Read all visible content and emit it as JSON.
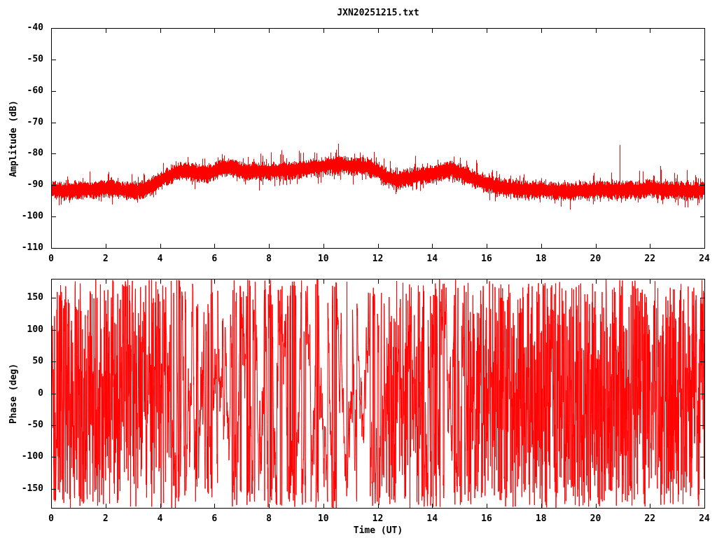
{
  "page": {
    "background_color": "#ffffff",
    "title_text": "JXN20251215.txt"
  },
  "colors": {
    "trace": "#ff0000",
    "axis": "#000000",
    "text": "#000000",
    "background": "#ffffff"
  },
  "chart_data": [
    {
      "type": "line",
      "panel": "amplitude",
      "title": "JXN20251215.txt",
      "xlabel": "",
      "ylabel": "Amplitude (dB)",
      "xlim": [
        0,
        24
      ],
      "ylim": [
        -110,
        -40
      ],
      "xticks": [
        0,
        2,
        4,
        6,
        8,
        10,
        12,
        14,
        16,
        18,
        20,
        22,
        24
      ],
      "yticks": [
        -40,
        -50,
        -60,
        -70,
        -80,
        -90,
        -100,
        -110
      ],
      "grid": false,
      "legend": "none",
      "series": [
        {
          "name": "amplitude",
          "color": "#ff0000",
          "style": "dense noisy band, vertical-stroke appearance",
          "envelope_t": [
            0,
            0.5,
            1,
            1.5,
            2,
            2.5,
            3,
            3.3,
            3.7,
            4,
            4.3,
            4.7,
            5,
            5.3,
            5.7,
            6,
            6.3,
            6.6,
            7,
            7.5,
            8,
            8.5,
            9,
            9.5,
            10,
            10.3,
            10.7,
            11,
            11.5,
            12,
            12.3,
            12.7,
            13,
            13.5,
            14,
            14.4,
            14.7,
            15,
            15.4,
            15.8,
            16,
            16.5,
            17,
            17.5,
            18,
            19,
            20,
            20.5,
            21,
            21.5,
            22,
            22.5,
            23,
            23.5,
            24
          ],
          "envelope_center_db": [
            -91.5,
            -92,
            -91.5,
            -91.5,
            -91,
            -91.5,
            -92,
            -91.5,
            -90,
            -88.5,
            -87,
            -85.5,
            -85.5,
            -86,
            -86.5,
            -85.5,
            -84.5,
            -84.5,
            -85.5,
            -85.5,
            -85.5,
            -85.5,
            -85,
            -84.5,
            -84,
            -83.5,
            -83.5,
            -84,
            -84,
            -85.5,
            -87.5,
            -88.5,
            -88,
            -87,
            -86.5,
            -85.5,
            -85,
            -86,
            -87.5,
            -89,
            -89.5,
            -90.5,
            -91,
            -91.5,
            -91.5,
            -92,
            -91.5,
            -91.5,
            -91.5,
            -91.5,
            -91,
            -91.5,
            -91.5,
            -92,
            -91.5
          ],
          "core_halfwidth_db": 3.0,
          "spike_up_db": 5.0,
          "spike_down_db": 4.0,
          "notable_spikes": [
            {
              "t": 20.9,
              "db": -77.2
            },
            {
              "t": 10.55,
              "db": -76.8
            }
          ]
        }
      ]
    },
    {
      "type": "line",
      "panel": "phase",
      "title": "",
      "xlabel": "Time (UT)",
      "ylabel": "Phase (deg)",
      "xlim": [
        0,
        24
      ],
      "ylim": [
        -180,
        180
      ],
      "xticks": [
        0,
        2,
        4,
        6,
        8,
        10,
        12,
        14,
        16,
        18,
        20,
        22,
        24
      ],
      "yticks": [
        150,
        100,
        50,
        0,
        -50,
        -100,
        -150
      ],
      "grid": false,
      "legend": "none",
      "series": [
        {
          "name": "phase",
          "color": "#ff0000",
          "style": "wrapped phase noise spanning -180..180; dense full-height strokes when signal weak, calmer clusters with white gaps near 5-12 UT",
          "coherence_note": "phase stability follows amplitude envelope of top panel"
        }
      ]
    }
  ]
}
